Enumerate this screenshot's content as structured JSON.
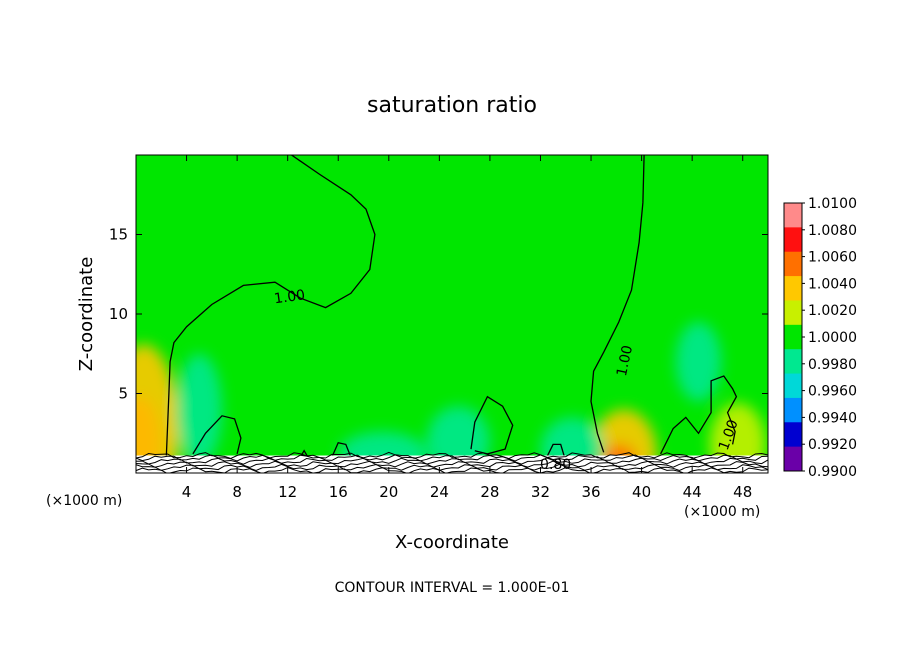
{
  "chart_data": {
    "type": "heatmap",
    "title": "saturation ratio",
    "xlabel": "X-coordinate",
    "ylabel": "Z-coordinate",
    "x_unit_left": "(×1000 m)",
    "x_unit_right": "(×1000 m)",
    "xlim": [
      0,
      50
    ],
    "ylim": [
      0,
      20
    ],
    "x_ticks": [
      4,
      8,
      12,
      16,
      20,
      24,
      28,
      32,
      36,
      40,
      44,
      48
    ],
    "y_ticks": [
      5,
      10,
      15
    ],
    "footer": "CONTOUR INTERVAL = 1.000E-01",
    "colorbar": {
      "labels": [
        "1.0100",
        "1.0080",
        "1.0060",
        "1.0040",
        "1.0020",
        "1.0000",
        "0.9980",
        "0.9960",
        "0.9940",
        "0.9920",
        "0.9900"
      ],
      "colors": [
        "#ff8a8a",
        "#ff1010",
        "#ff7000",
        "#ffc800",
        "#c8f000",
        "#00e600",
        "#00e890",
        "#00d8d8",
        "#0090ff",
        "#0000d0",
        "#6a00a8"
      ]
    },
    "background_value": 1.0,
    "background_color": "#00e600",
    "contour_labels": [
      {
        "text": "1.00",
        "x": 12.2,
        "y": 10.8,
        "rotate": -8
      },
      {
        "text": "1.00",
        "x": 39.0,
        "y": 7.0,
        "rotate": -78
      },
      {
        "text": "1.00",
        "x": 47.2,
        "y": 2.3,
        "rotate": -70
      },
      {
        "text": "0.80",
        "x": 33.2,
        "y": 0.25,
        "rotate": 0
      }
    ],
    "contours": [
      {
        "value": 1.0,
        "points": [
          [
            12.3,
            20
          ],
          [
            14.5,
            18.8
          ],
          [
            17,
            17.5
          ],
          [
            18.2,
            16.6
          ],
          [
            18.9,
            15
          ],
          [
            18.5,
            12.8
          ],
          [
            17,
            11.3
          ],
          [
            15,
            10.4
          ],
          [
            13,
            11
          ],
          [
            11,
            12
          ],
          [
            8.5,
            11.8
          ],
          [
            6,
            10.6
          ],
          [
            4,
            9.2
          ],
          [
            3,
            8.2
          ],
          [
            2.7,
            7
          ],
          [
            2.6,
            5
          ],
          [
            2.5,
            3
          ],
          [
            2.4,
            1
          ]
        ]
      },
      {
        "value": 1.0,
        "points": [
          [
            40.2,
            20
          ],
          [
            40.1,
            17
          ],
          [
            39.8,
            14.5
          ],
          [
            39.2,
            11.5
          ],
          [
            38.2,
            9.5
          ],
          [
            37,
            7.6
          ],
          [
            36.2,
            6.4
          ],
          [
            36,
            4.5
          ],
          [
            36.5,
            2.5
          ],
          [
            37,
            1.3
          ]
        ]
      },
      {
        "value": 1.0,
        "points": [
          [
            4.5,
            1.2
          ],
          [
            5.5,
            2.5
          ],
          [
            6.8,
            3.6
          ],
          [
            7.8,
            3.4
          ],
          [
            8.3,
            2.2
          ],
          [
            8.0,
            1.2
          ]
        ]
      },
      {
        "value": 1.0,
        "points": [
          [
            26.5,
            1.5
          ],
          [
            26.8,
            3.2
          ],
          [
            27.8,
            4.8
          ],
          [
            29,
            4.2
          ],
          [
            29.8,
            3
          ],
          [
            29.2,
            1.5
          ],
          [
            27.8,
            1.2
          ],
          [
            26.8,
            1.4
          ]
        ]
      },
      {
        "value": 1.0,
        "points": [
          [
            41.5,
            1.2
          ],
          [
            42.5,
            2.8
          ],
          [
            43.5,
            3.5
          ],
          [
            44.5,
            2.5
          ],
          [
            45.5,
            3.8
          ],
          [
            45.5,
            5.8
          ],
          [
            46.5,
            6.1
          ],
          [
            47.2,
            5.3
          ],
          [
            47.5,
            4.8
          ],
          [
            46.8,
            3.8
          ],
          [
            47.4,
            2.6
          ],
          [
            47.2,
            1.8
          ]
        ]
      },
      {
        "value": 1.0,
        "points": [
          [
            15.5,
            1.0
          ],
          [
            16,
            1.9
          ],
          [
            16.6,
            1.8
          ],
          [
            17,
            1.0
          ]
        ]
      },
      {
        "value": 1.0,
        "points": [
          [
            32.5,
            1.0
          ],
          [
            33,
            1.8
          ],
          [
            33.6,
            1.8
          ],
          [
            33.9,
            1.0
          ]
        ]
      },
      {
        "value": 1.0,
        "points": [
          [
            13,
            1.0
          ],
          [
            13.3,
            1.4
          ],
          [
            13.6,
            1.0
          ]
        ]
      }
    ],
    "heat_spots": [
      {
        "x": 0.3,
        "y": 1.8,
        "rx": 1.6,
        "ry": 3.0,
        "color": "#ff2a00"
      },
      {
        "x": 0.6,
        "y": 2.6,
        "rx": 2.8,
        "ry": 5.5,
        "color": "#ffc800"
      },
      {
        "x": 38.6,
        "y": 1.2,
        "rx": 2.6,
        "ry": 2.8,
        "color": "#ffc800"
      },
      {
        "x": 38.2,
        "y": 0.8,
        "rx": 1.4,
        "ry": 1.0,
        "color": "#ff7000"
      },
      {
        "x": 47.6,
        "y": 1.8,
        "rx": 2.2,
        "ry": 2.6,
        "color": "#c8f000"
      },
      {
        "x": 19.5,
        "y": 1.2,
        "rx": 3.5,
        "ry": 1.4,
        "color": "#00e890"
      },
      {
        "x": 25.5,
        "y": 2.0,
        "rx": 2.5,
        "ry": 2.2,
        "color": "#00e890"
      },
      {
        "x": 34.5,
        "y": 1.5,
        "rx": 2.5,
        "ry": 2.0,
        "color": "#00e890"
      },
      {
        "x": 5.0,
        "y": 4.0,
        "rx": 1.8,
        "ry": 3.5,
        "color": "#00e890"
      },
      {
        "x": 44.5,
        "y": 7.0,
        "rx": 1.8,
        "ry": 2.5,
        "color": "#00e890"
      }
    ],
    "terrain_layers": [
      0.15,
      0.35,
      0.55,
      0.75,
      0.95,
      1.1
    ]
  }
}
